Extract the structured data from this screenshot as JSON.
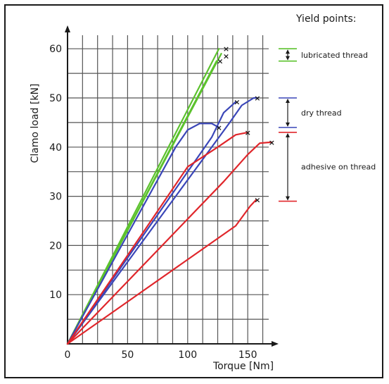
{
  "chart_data": {
    "type": "line",
    "title": "",
    "xlabel": "Torque [Nm]",
    "ylabel": "Clamo load [kN]",
    "xlim": [
      0,
      170
    ],
    "ylim": [
      0,
      62
    ],
    "xticks": [
      "0",
      "50",
      "100",
      "150"
    ],
    "yticks": [
      "10",
      "20",
      "30",
      "40",
      "50",
      "60"
    ],
    "grid": true,
    "colors": {
      "lubricated": "#5cc22e",
      "dry": "#3a46b8",
      "adhesive": "#e0262b",
      "ink": "#1a1a1a",
      "grid": "#555555"
    },
    "series": [
      {
        "group": "lubricated",
        "points": [
          [
            0,
            0
          ],
          [
            126,
            60
          ]
        ],
        "yield_marker": [
          132,
          60
        ]
      },
      {
        "group": "lubricated",
        "points": [
          [
            0,
            0
          ],
          [
            128,
            59
          ]
        ],
        "yield_marker": [
          132,
          58.5
        ]
      },
      {
        "group": "lubricated",
        "points": [
          [
            0,
            0
          ],
          [
            124,
            57.5
          ]
        ],
        "yield_marker": [
          127,
          57.5
        ]
      },
      {
        "group": "dry",
        "points": [
          [
            0,
            0
          ],
          [
            90,
            40
          ],
          [
            100,
            43.5
          ],
          [
            110,
            44.8
          ],
          [
            120,
            44.8
          ],
          [
            126,
            44
          ]
        ],
        "yield_marker": [
          126,
          44
        ]
      },
      {
        "group": "dry",
        "points": [
          [
            0,
            0
          ],
          [
            120,
            42
          ],
          [
            130,
            47
          ],
          [
            140,
            49.2
          ]
        ],
        "yield_marker": [
          141,
          49.2
        ]
      },
      {
        "group": "dry",
        "points": [
          [
            0,
            0
          ],
          [
            135,
            45
          ],
          [
            145,
            48.5
          ],
          [
            155,
            50
          ],
          [
            158,
            50
          ]
        ],
        "yield_marker": [
          158,
          50
        ]
      },
      {
        "group": "adhesive",
        "points": [
          [
            0,
            0
          ],
          [
            100,
            36
          ],
          [
            125,
            40
          ],
          [
            140,
            42.5
          ],
          [
            150,
            43
          ]
        ],
        "yield_marker": [
          150,
          43
        ]
      },
      {
        "group": "adhesive",
        "points": [
          [
            0,
            0
          ],
          [
            130,
            33
          ],
          [
            150,
            38.5
          ],
          [
            160,
            40.8
          ],
          [
            170,
            41
          ]
        ],
        "yield_marker": [
          170,
          41
        ]
      },
      {
        "group": "adhesive",
        "points": [
          [
            0,
            0
          ],
          [
            140,
            24
          ],
          [
            152,
            28
          ],
          [
            157,
            29.3
          ]
        ],
        "yield_marker": [
          158,
          29.3
        ]
      }
    ],
    "yield_points": {
      "title": "Yield points:",
      "ranges": [
        {
          "group": "lubricated",
          "label": "lubricated thread",
          "low": 57.5,
          "high": 60
        },
        {
          "group": "dry",
          "label": "dry thread",
          "low": 44,
          "high": 50
        },
        {
          "group": "adhesive",
          "label": "adhesive on thread",
          "low": 29,
          "high": 43
        }
      ]
    }
  }
}
